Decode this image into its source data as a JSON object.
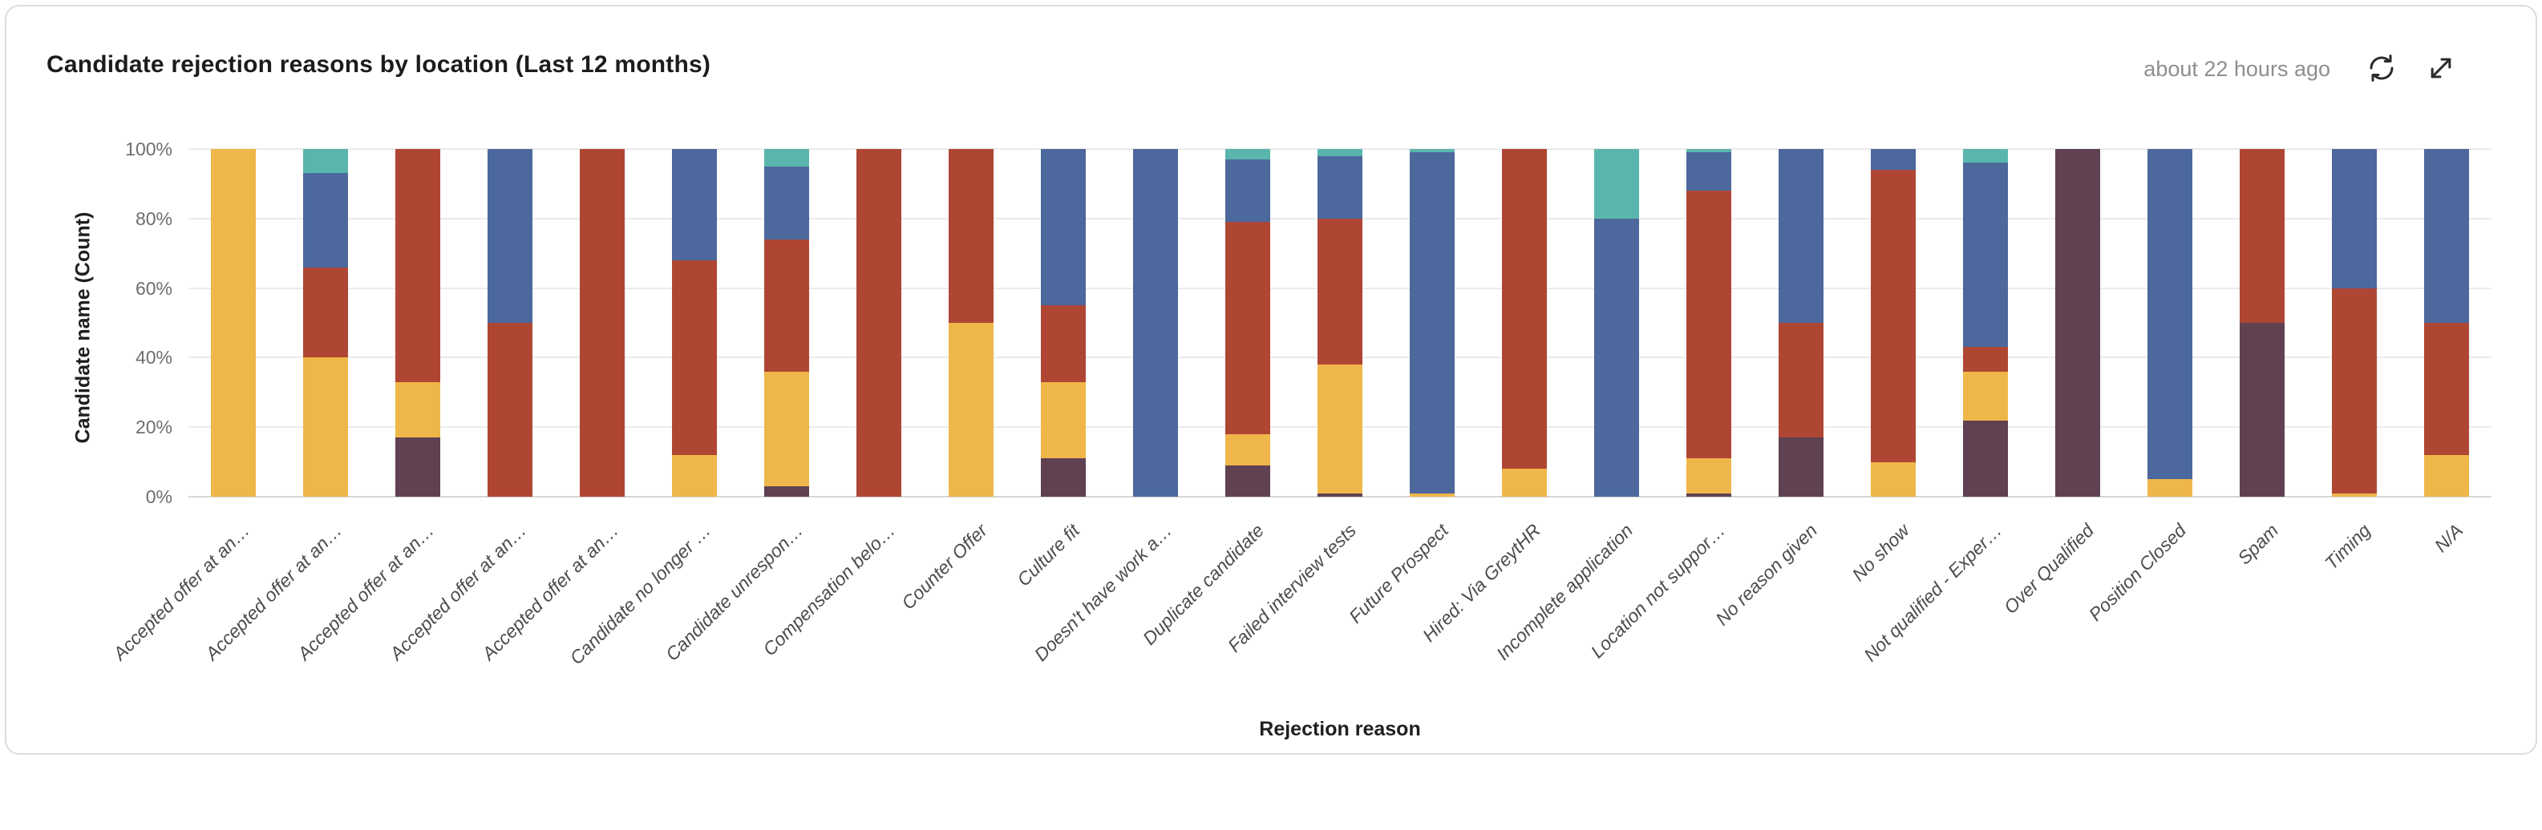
{
  "header": {
    "title": "Candidate rejection reasons by location (Last 12 months)",
    "last_updated": "about 22 hours ago",
    "icons": {
      "refresh": "refresh-icon",
      "expand": "expand-icon"
    }
  },
  "chart_data": {
    "type": "bar",
    "stacked": true,
    "percent_axis": true,
    "title": "Candidate rejection reasons by location (Last 12 months)",
    "xlabel": "Rejection reason",
    "ylabel": "Candidate name (Count)",
    "ylim": [
      0,
      100
    ],
    "y_ticks": [
      "0%",
      "20%",
      "40%",
      "60%",
      "80%",
      "100%"
    ],
    "grid": true,
    "legend": "none",
    "stack_order": "bottom-to-top",
    "categories": [
      "Accepted offer at an…",
      "Accepted offer at an…",
      "Accepted offer at an…",
      "Accepted offer at an…",
      "Accepted offer at an…",
      "Candidate no longer …",
      "Candidate unrespon…",
      "Compensation belo…",
      "Counter Offer",
      "Culture fit",
      "Doesn't have work a…",
      "Duplicate candidate",
      "Failed interview tests",
      "Future Prospect",
      "Hired: Via GreytHR",
      "Incomplete application",
      "Location not suppor…",
      "No reason given",
      "No show",
      "Not qualified - Exper…",
      "Over Qualified",
      "Position Closed",
      "Spam",
      "Timing",
      "N/A"
    ],
    "series": [
      {
        "name": "maroon",
        "color": "#5F4152",
        "values": [
          0,
          0,
          17,
          0,
          0,
          0,
          3,
          0,
          0,
          11,
          0,
          9,
          1,
          0,
          0,
          0,
          1,
          17,
          0,
          22,
          100,
          0,
          50,
          0,
          0
        ]
      },
      {
        "name": "amber",
        "color": "#EFB74A",
        "values": [
          100,
          40,
          16,
          0,
          0,
          12,
          33,
          0,
          50,
          22,
          0,
          9,
          37,
          1,
          8,
          0,
          10,
          0,
          10,
          14,
          0,
          5,
          0,
          1,
          12
        ]
      },
      {
        "name": "red",
        "color": "#AF4634",
        "values": [
          0,
          26,
          67,
          50,
          100,
          56,
          38,
          100,
          50,
          22,
          0,
          61,
          42,
          0,
          92,
          0,
          77,
          33,
          84,
          7,
          0,
          0,
          50,
          59,
          38
        ]
      },
      {
        "name": "blue",
        "color": "#4C689D",
        "values": [
          0,
          27,
          0,
          50,
          0,
          32,
          21,
          0,
          0,
          45,
          100,
          18,
          18,
          98,
          0,
          80,
          11,
          50,
          6,
          53,
          0,
          95,
          0,
          40,
          50
        ]
      },
      {
        "name": "teal",
        "color": "#5AB6AC",
        "values": [
          0,
          7,
          0,
          0,
          0,
          0,
          5,
          0,
          0,
          0,
          0,
          3,
          2,
          1,
          0,
          20,
          1,
          0,
          0,
          4,
          0,
          0,
          0,
          0,
          0
        ]
      }
    ]
  }
}
